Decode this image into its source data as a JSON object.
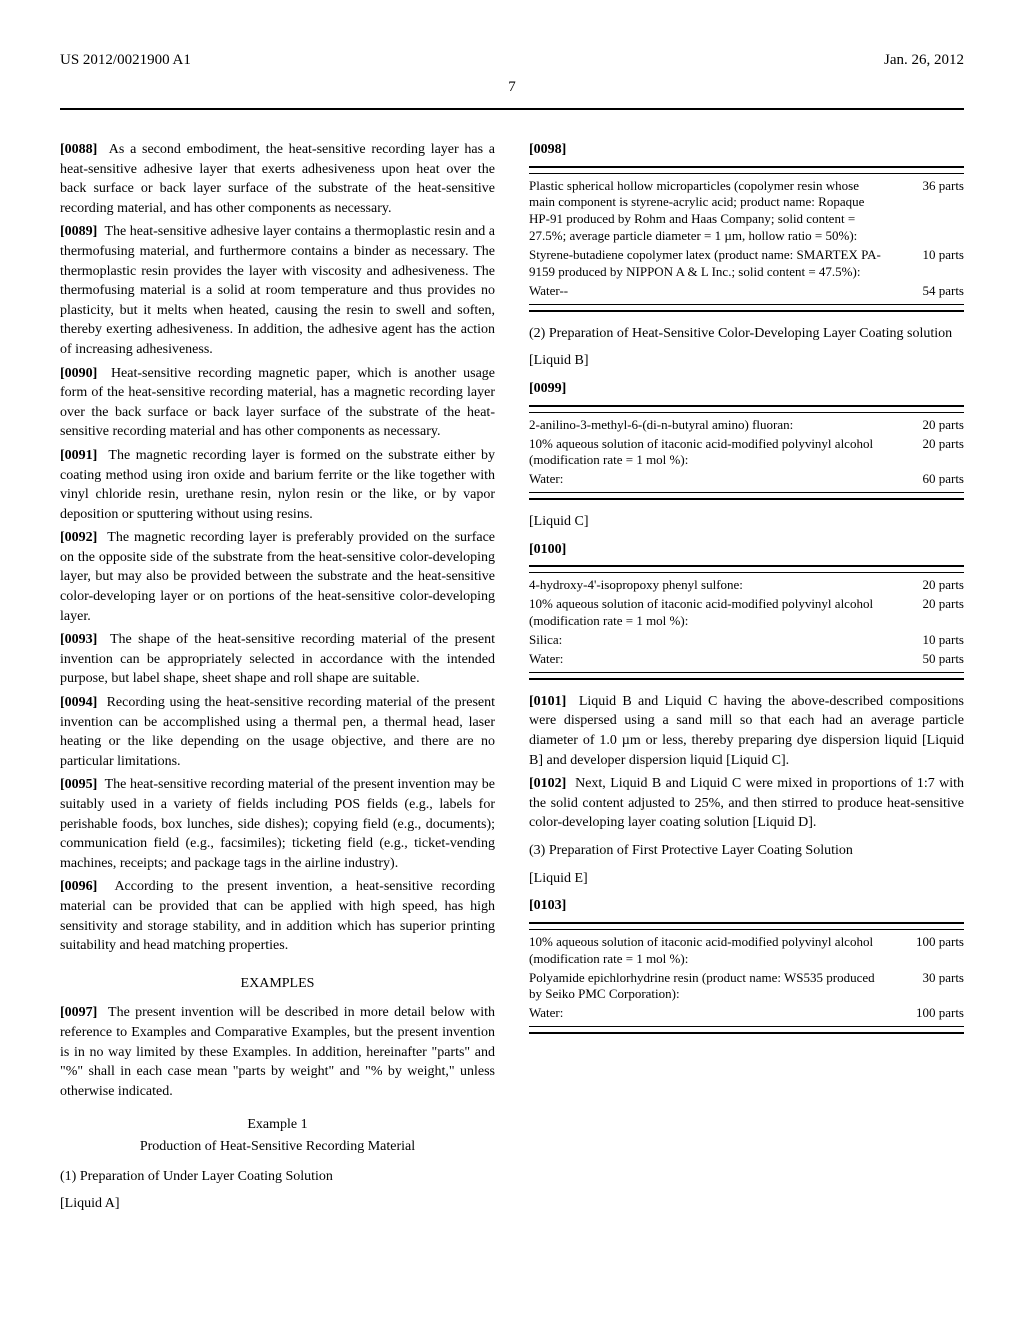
{
  "header": {
    "left": "US 2012/0021900 A1",
    "right": "Jan. 26, 2012",
    "pagenum": "7"
  },
  "leftcol": {
    "p88": "As a second embodiment, the heat-sensitive recording layer has a heat-sensitive adhesive layer that exerts adhesiveness upon heat over the back surface or back layer surface of the substrate of the heat-sensitive recording material, and has other components as necessary.",
    "p89": "The heat-sensitive adhesive layer contains a thermoplastic resin and a thermofusing material, and furthermore contains a binder as necessary. The thermoplastic resin provides the layer with viscosity and adhesiveness. The thermofusing material is a solid at room temperature and thus provides no plasticity, but it melts when heated, causing the resin to swell and soften, thereby exerting adhesiveness. In addition, the adhesive agent has the action of increasing adhesiveness.",
    "p90": "Heat-sensitive recording magnetic paper, which is another usage form of the heat-sensitive recording material, has a magnetic recording layer over the back surface or back layer surface of the substrate of the heat-sensitive recording material and has other components as necessary.",
    "p91": "The magnetic recording layer is formed on the substrate either by coating method using iron oxide and barium ferrite or the like together with vinyl chloride resin, urethane resin, nylon resin or the like, or by vapor deposition or sputtering without using resins.",
    "p92": "The magnetic recording layer is preferably provided on the surface on the opposite side of the substrate from the heat-sensitive color-developing layer, but may also be provided between the substrate and the heat-sensitive color-developing layer or on portions of the heat-sensitive color-developing layer.",
    "p93": "The shape of the heat-sensitive recording material of the present invention can be appropriately selected in accordance with the intended purpose, but label shape, sheet shape and roll shape are suitable.",
    "p94": "Recording using the heat-sensitive recording material of the present invention can be accomplished using a thermal pen, a thermal head, laser heating or the like depending on the usage objective, and there are no particular limitations.",
    "p95": "The heat-sensitive recording material of the present invention may be suitably used in a variety of fields including POS fields (e.g., labels for perishable foods, box lunches, side dishes); copying field (e.g., documents); communication field (e.g., facsimiles); ticketing field (e.g., ticket-vending machines, receipts; and package tags in the airline industry).",
    "p96": "According to the present invention, a heat-sensitive recording material can be provided that can be applied with high speed, has high sensitivity and storage stability, and in addition which has superior printing suitability and head matching properties.",
    "examples_heading": "EXAMPLES",
    "p97": "The present invention will be described in more detail below with reference to Examples and Comparative Examples, but the present invention is in no way limited by these Examples. In addition, hereinafter \"parts\" and \"%\" shall in each case mean \"parts by weight\" and \"% by weight,\" unless otherwise indicated."
  },
  "rightcol": {
    "ex1": "Example 1",
    "ex1_sub": "Production of Heat-Sensitive Recording Material",
    "sec1": "(1) Preparation of Under Layer Coating Solution",
    "liquidA": "[Liquid A]",
    "p98": "[0098]",
    "tableA": {
      "r1": {
        "label": "Plastic spherical hollow microparticles (copolymer resin whose main component is styrene-acrylic acid; product name: Ropaque HP-91 produced by Rohm and Haas Company; solid content = 27.5%; average particle diameter = 1 µm, hollow ratio = 50%):",
        "amount": "36 parts"
      },
      "r2": {
        "label": "Styrene-butadiene copolymer latex (product name: SMARTEX PA-9159 produced by NIPPON A & L Inc.; solid content = 47.5%):",
        "amount": "10 parts"
      },
      "r3": {
        "label": "Water--",
        "amount": "54 parts"
      }
    },
    "sec2": "(2) Preparation of Heat-Sensitive Color-Developing Layer Coating solution",
    "liquidB": "[Liquid B]",
    "p99": "[0099]",
    "tableB": {
      "r1": {
        "label": "2-anilino-3-methyl-6-(di-n-butyral amino) fluoran:",
        "amount": "20 parts"
      },
      "r2": {
        "label": "10% aqueous solution of itaconic acid-modified polyvinyl alcohol (modification rate = 1 mol %):",
        "amount": "20 parts"
      },
      "r3": {
        "label": "Water:",
        "amount": "60 parts"
      }
    },
    "liquidC": "[Liquid C]",
    "p100": "[0100]",
    "tableC": {
      "r1": {
        "label": "4-hydroxy-4'-isopropoxy phenyl sulfone:",
        "amount": "20 parts"
      },
      "r2": {
        "label": "10% aqueous solution of itaconic acid-modified polyvinyl alcohol (modification rate = 1 mol %):",
        "amount": "20 parts"
      },
      "r3": {
        "label": "Silica:",
        "amount": "10 parts"
      },
      "r4": {
        "label": "Water:",
        "amount": "50 parts"
      }
    },
    "p101": "Liquid B and Liquid C having the above-described compositions were dispersed using a sand mill so that each had an average particle diameter of 1.0 µm or less, thereby preparing dye dispersion liquid [Liquid B] and developer dispersion liquid [Liquid C].",
    "p102": "Next, Liquid B and Liquid C were mixed in proportions of 1:7 with the solid content adjusted to 25%, and then stirred to produce heat-sensitive color-developing layer coating solution [Liquid D].",
    "sec3": "(3) Preparation of First Protective Layer Coating Solution",
    "liquidE": "[Liquid E]",
    "p103": "[0103]",
    "tableE": {
      "r1": {
        "label": "10% aqueous solution of itaconic acid-modified polyvinyl alcohol (modification rate = 1 mol %):",
        "amount": "100 parts"
      },
      "r2": {
        "label": "Polyamide epichlorhydrine resin (product name: WS535 produced by Seiko PMC Corporation):",
        "amount": "30 parts"
      },
      "r3": {
        "label": "Water:",
        "amount": "100 parts"
      }
    }
  }
}
